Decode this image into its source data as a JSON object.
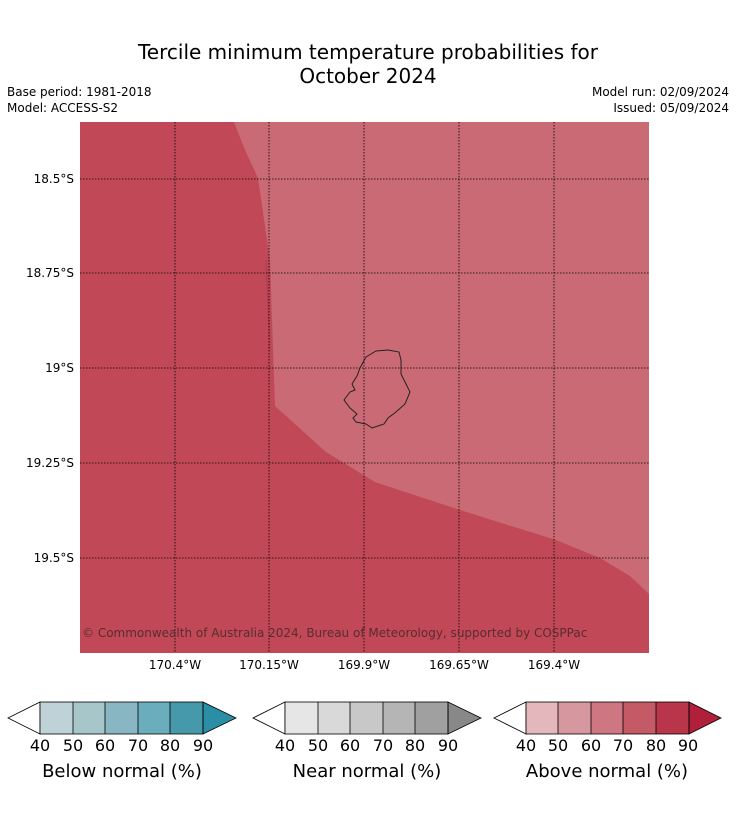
{
  "title": {
    "line1": "Tercile minimum temperature probabilities for",
    "line2": "October 2024"
  },
  "meta": {
    "base_period": "Base period: 1981-2018",
    "model": "Model: ACCESS-S2",
    "model_run": "Model run: 02/09/2024",
    "issued": "Issued: 05/09/2024"
  },
  "map": {
    "lat_labels": [
      "18.5°S",
      "18.75°S",
      "19°S",
      "19.25°S",
      "19.5°S"
    ],
    "lon_labels": [
      "170.4°W",
      "170.15°W",
      "169.9°W",
      "169.65°W",
      "169.4°W"
    ],
    "regions": [
      {
        "name": "above-normal-70-80",
        "color": "#c14957"
      },
      {
        "name": "above-normal-60-70",
        "color": "#ca6a75"
      }
    ],
    "island": "Niue",
    "copyright": "© Commonwealth of Australia 2024, Bureau of Meteorology, supported by COSPPac"
  },
  "colorbars": [
    {
      "label": "Below normal (%)",
      "ticks": [
        "40",
        "50",
        "60",
        "70",
        "80",
        "90"
      ],
      "colors": [
        "#bed2d8",
        "#a7c6ca",
        "#88b6c2",
        "#6aadbc",
        "#4599ab",
        "#2a8ea5"
      ]
    },
    {
      "label": "Near normal (%)",
      "ticks": [
        "40",
        "50",
        "60",
        "70",
        "80",
        "90"
      ],
      "colors": [
        "#e6e6e6",
        "#d9d9d9",
        "#c8c8c8",
        "#b5b5b5",
        "#a0a0a0",
        "#888888"
      ]
    },
    {
      "label": "Above normal (%)",
      "ticks": [
        "40",
        "50",
        "60",
        "70",
        "80",
        "90"
      ],
      "colors": [
        "#e3b7bb",
        "#d7979f",
        "#ce7681",
        "#c55a67",
        "#b8354a",
        "#b0203a"
      ]
    }
  ]
}
